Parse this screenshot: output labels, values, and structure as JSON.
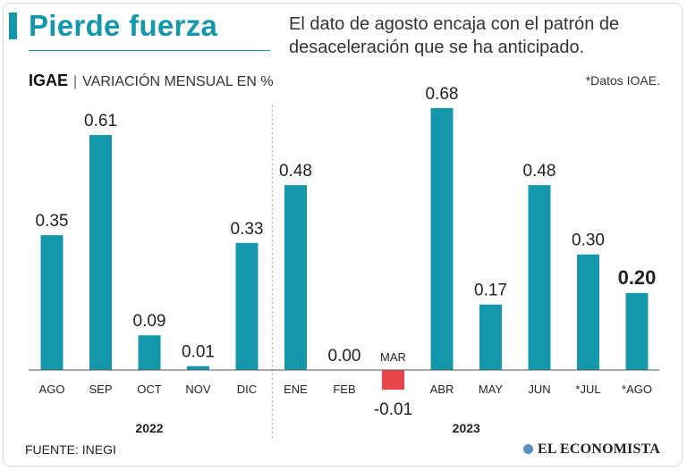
{
  "header": {
    "title": "Pierde fuerza",
    "subtitle": "El dato de agosto encaja con el patrón de desaceleración que se ha anticipado."
  },
  "chart_header": {
    "indicator": "IGAE",
    "separator": "|",
    "measure": "VARIACIÓN MENSUAL EN %",
    "note": "*Datos IOAE."
  },
  "footer": {
    "source": "FUENTE: INEGI",
    "brand": "EL ECONOMISTA"
  },
  "colors": {
    "positive": "#1497ab",
    "negative": "#e8464a",
    "title": "#1497ab"
  },
  "chart_data": {
    "type": "bar",
    "title": "IGAE | VARIACIÓN MENSUAL EN %",
    "xlabel": "",
    "ylabel": "Variación mensual (%)",
    "ylim": [
      -0.05,
      0.7
    ],
    "categories": [
      "AGO",
      "SEP",
      "OCT",
      "NOV",
      "DIC",
      "ENE",
      "FEB",
      "MAR",
      "ABR",
      "MAY",
      "JUN",
      "*JUL",
      "*AGO"
    ],
    "values": [
      0.35,
      0.61,
      0.09,
      0.01,
      0.33,
      0.48,
      0.0,
      -0.01,
      0.68,
      0.17,
      0.48,
      0.3,
      0.2
    ],
    "value_labels": [
      "0.35",
      "0.61",
      "0.09",
      "0.01",
      "0.33",
      "0.48",
      "0.00",
      "-0.01",
      "0.68",
      "0.17",
      "0.48",
      "0.30",
      "0.20"
    ],
    "years": [
      {
        "label": "2022",
        "from": 0,
        "to": 4
      },
      {
        "label": "2023",
        "from": 5,
        "to": 12
      }
    ],
    "highlight_index": 12
  }
}
